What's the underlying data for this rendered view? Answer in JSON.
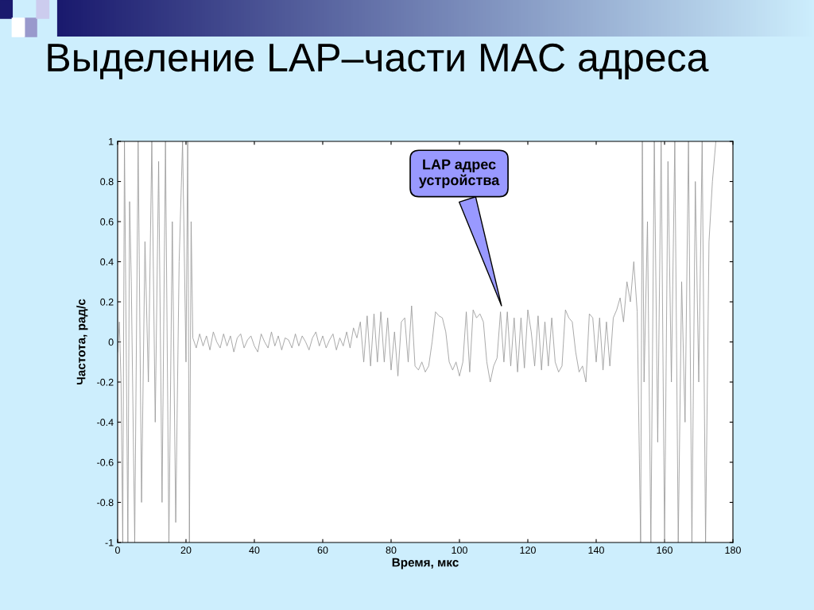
{
  "chart_data": {
    "type": "line",
    "title": "Выделение LAP–части MAC адреса",
    "xlabel": "Время, мкс",
    "ylabel": "Частота, рад/с",
    "annotations": [
      "LAP адрес\nустройства"
    ],
    "xlim": [
      0,
      180
    ],
    "ylim": [
      -1,
      1
    ],
    "xticks": [
      0,
      20,
      40,
      60,
      80,
      100,
      120,
      140,
      160,
      180
    ],
    "yticks": [
      -1,
      -0.8,
      -0.6,
      -0.4,
      -0.2,
      0,
      0.2,
      0.4,
      0.6,
      0.8,
      1
    ],
    "grid": false,
    "legend": false,
    "marker": "none",
    "line_style": "solid",
    "series": [
      {
        "color": "#999999",
        "x": [
          0,
          0.5,
          1,
          1.5,
          2,
          3,
          3.5,
          4,
          5,
          6,
          7,
          8,
          9,
          10,
          11,
          12,
          13,
          14,
          15,
          16,
          17,
          18,
          19,
          20,
          20.5,
          21,
          21.5,
          22,
          23,
          24,
          25,
          26,
          27,
          28,
          29,
          30,
          31,
          32,
          33,
          34,
          35,
          36,
          37,
          38,
          39,
          40,
          41,
          42,
          43,
          44,
          45,
          46,
          47,
          48,
          49,
          50,
          51,
          52,
          53,
          54,
          55,
          56,
          57,
          58,
          59,
          60,
          61,
          62,
          63,
          64,
          65,
          66,
          67,
          68,
          69,
          70,
          71,
          72,
          73,
          74,
          75,
          76,
          77,
          78,
          79,
          80,
          81,
          82,
          83,
          84,
          85,
          86,
          87,
          88,
          89,
          90,
          91,
          92,
          93,
          94,
          95,
          96,
          97,
          98,
          99,
          100,
          101,
          102,
          103,
          104,
          105,
          106,
          107,
          108,
          109,
          110,
          111,
          112,
          113,
          114,
          115,
          116,
          117,
          118,
          119,
          120,
          121,
          122,
          123,
          124,
          125,
          126,
          127,
          128,
          129,
          130,
          131,
          132,
          133,
          134,
          135,
          136,
          137,
          138,
          139,
          140,
          141,
          142,
          143,
          144,
          145,
          146,
          147,
          148,
          149,
          150,
          151,
          152,
          153,
          153.5,
          154,
          155,
          156,
          157,
          158,
          159,
          160,
          161,
          162,
          163,
          164,
          165,
          166,
          167,
          168,
          169,
          170,
          171,
          172,
          173,
          174,
          175
        ],
        "values": [
          -0.05,
          0.1,
          -0.2,
          -1,
          1,
          -1,
          0.7,
          0.3,
          -1,
          1,
          -0.8,
          0.5,
          -0.2,
          1,
          -0.4,
          0.9,
          -0.8,
          1,
          -1,
          0.6,
          -0.9,
          0.4,
          1,
          -0.1,
          1,
          -1,
          0.6,
          0.02,
          -0.03,
          0.04,
          -0.02,
          0.03,
          -0.04,
          0.05,
          0.0,
          -0.03,
          0.04,
          -0.02,
          0.03,
          -0.05,
          0.02,
          0.04,
          -0.03,
          0.01,
          0.03,
          -0.02,
          -0.05,
          0.04,
          0.0,
          -0.03,
          0.05,
          -0.02,
          0.03,
          -0.04,
          0.02,
          0.01,
          -0.03,
          0.04,
          -0.02,
          0.03,
          0.0,
          -0.04,
          0.02,
          0.05,
          -0.02,
          0.03,
          -0.03,
          0.01,
          0.04,
          -0.04,
          0.02,
          -0.02,
          0.05,
          -0.03,
          0.07,
          0.02,
          0.1,
          -0.1,
          0.13,
          -0.12,
          0.14,
          -0.1,
          0.15,
          -0.1,
          0.12,
          -0.14,
          0.05,
          -0.17,
          0.1,
          0.12,
          -0.1,
          0.18,
          -0.12,
          -0.14,
          -0.1,
          -0.15,
          -0.12,
          0.0,
          0.15,
          0.13,
          0.12,
          0.05,
          -0.1,
          -0.14,
          -0.1,
          -0.17,
          -0.1,
          0.15,
          -0.15,
          0.16,
          0.12,
          0.14,
          0.1,
          -0.1,
          -0.2,
          -0.12,
          -0.08,
          0.15,
          -0.1,
          0.15,
          -0.12,
          0.12,
          -0.15,
          0.12,
          -0.13,
          0.16,
          0.05,
          -0.12,
          0.13,
          -0.14,
          0.1,
          -0.12,
          0.12,
          -0.1,
          -0.15,
          -0.12,
          0.16,
          0.12,
          0.1,
          -0.05,
          -0.15,
          -0.12,
          -0.2,
          0.14,
          0.12,
          -0.1,
          0.12,
          -0.14,
          0.1,
          -0.12,
          0.12,
          0.16,
          0.22,
          0.1,
          0.3,
          0.2,
          0.4,
          0.15,
          -1,
          1,
          -0.2,
          0.6,
          -1,
          1,
          -0.5,
          1,
          -1,
          0.9,
          -0.2,
          1,
          -1,
          0.3,
          -0.4,
          1,
          -1,
          0.8,
          -0.2,
          1,
          -1,
          0.5,
          0.8,
          1
        ]
      }
    ]
  }
}
